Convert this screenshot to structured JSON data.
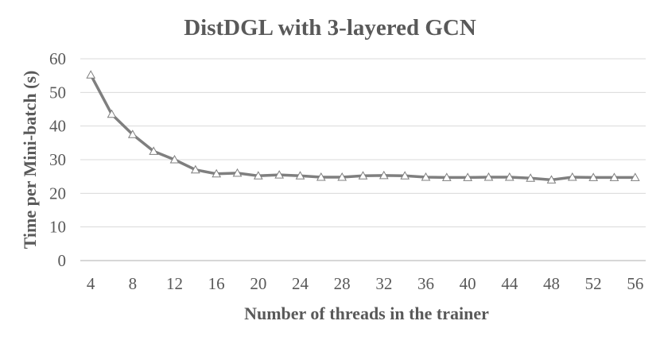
{
  "chart_data": {
    "type": "line",
    "title": "DistDGL with 3-layered GCN",
    "xlabel": "Number of  threads in the trainer",
    "ylabel": "Time per Mini-batch (s)",
    "x": [
      4,
      6,
      8,
      10,
      12,
      14,
      16,
      18,
      20,
      22,
      24,
      26,
      28,
      30,
      32,
      34,
      36,
      38,
      40,
      42,
      44,
      46,
      48,
      50,
      52,
      54,
      56
    ],
    "x_tick_labels": [
      "4",
      "8",
      "12",
      "16",
      "20",
      "24",
      "28",
      "32",
      "36",
      "40",
      "44",
      "48",
      "52",
      "56"
    ],
    "y_tick_labels": [
      "0",
      "10",
      "20",
      "30",
      "40",
      "50",
      "60"
    ],
    "ylim": [
      0,
      60
    ],
    "grid": true,
    "legend": "none",
    "series": [
      {
        "color": "#7f7f7f",
        "marker": "triangle",
        "values": [
          55.2,
          43.5,
          37.5,
          32.5,
          30.0,
          27.0,
          25.8,
          26.0,
          25.2,
          25.5,
          25.2,
          24.8,
          24.8,
          25.2,
          25.3,
          25.2,
          24.8,
          24.7,
          24.7,
          24.8,
          24.8,
          24.5,
          24.0,
          24.8,
          24.7,
          24.7,
          24.7
        ]
      }
    ]
  }
}
